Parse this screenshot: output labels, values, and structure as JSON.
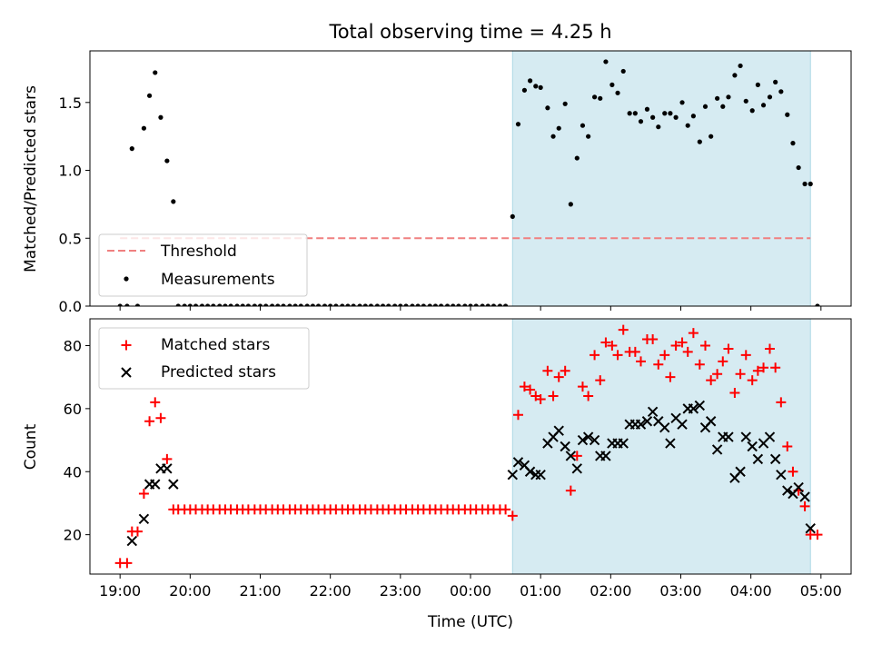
{
  "chart_data": {
    "title": "Total observing time = 4.25 h",
    "xlabel": "Time (UTC)",
    "x_tick_labels": [
      "19:00",
      "20:00",
      "21:00",
      "22:00",
      "23:00",
      "00:00",
      "01:00",
      "02:00",
      "03:00",
      "04:00",
      "05:00"
    ],
    "x_tick_hours": [
      0,
      1,
      2,
      3,
      4,
      5,
      6,
      7,
      8,
      9,
      10
    ],
    "x_units": "hours since 19:00 UTC",
    "xlim": [
      -0.43,
      10.43
    ],
    "shaded_span": {
      "x": [
        5.6,
        9.85
      ],
      "color": "#add8e6"
    },
    "top": {
      "type": "scatter",
      "ylabel": "Matched/Predicted stars",
      "ylim": [
        0,
        1.88
      ],
      "y_ticks": [
        "0.0",
        "0.5",
        "1.0",
        "1.5"
      ],
      "y_tick_values": [
        0,
        0.5,
        1.0,
        1.5
      ],
      "legend": {
        "placement": "lower-left",
        "entries": [
          "Threshold",
          "Measurements"
        ]
      },
      "threshold": {
        "name": "Threshold",
        "value": 0.5,
        "x": [
          0,
          9.85
        ],
        "color": "#f08080"
      },
      "measurements": {
        "name": "Measurements",
        "color": "#000000",
        "points": [
          [
            0.0,
            0.0
          ],
          [
            0.1,
            0.0
          ],
          [
            0.17,
            1.16
          ],
          [
            0.25,
            0.0
          ],
          [
            0.34,
            1.31
          ],
          [
            0.42,
            1.55
          ],
          [
            0.5,
            1.72
          ],
          [
            0.58,
            1.39
          ],
          [
            0.67,
            1.07
          ],
          [
            0.76,
            0.77
          ],
          [
            0.83,
            0.0
          ],
          [
            0.92,
            0.0
          ],
          [
            1.0,
            0.0
          ],
          [
            1.08,
            0.0
          ],
          [
            1.17,
            0.0
          ],
          [
            1.25,
            0.0
          ],
          [
            1.33,
            0.0
          ],
          [
            1.42,
            0.0
          ],
          [
            1.5,
            0.0
          ],
          [
            1.58,
            0.0
          ],
          [
            1.67,
            0.0
          ],
          [
            1.75,
            0.0
          ],
          [
            1.83,
            0.0
          ],
          [
            1.92,
            0.0
          ],
          [
            2.0,
            0.0
          ],
          [
            2.08,
            0.0
          ],
          [
            2.17,
            0.0
          ],
          [
            2.25,
            0.0
          ],
          [
            2.33,
            0.0
          ],
          [
            2.42,
            0.0
          ],
          [
            2.5,
            0.0
          ],
          [
            2.58,
            0.0
          ],
          [
            2.67,
            0.0
          ],
          [
            2.75,
            0.0
          ],
          [
            2.83,
            0.0
          ],
          [
            2.92,
            0.0
          ],
          [
            3.0,
            0.0
          ],
          [
            3.08,
            0.0
          ],
          [
            3.17,
            0.0
          ],
          [
            3.25,
            0.0
          ],
          [
            3.33,
            0.0
          ],
          [
            3.42,
            0.0
          ],
          [
            3.5,
            0.0
          ],
          [
            3.58,
            0.0
          ],
          [
            3.67,
            0.0
          ],
          [
            3.75,
            0.0
          ],
          [
            3.83,
            0.0
          ],
          [
            3.92,
            0.0
          ],
          [
            4.0,
            0.0
          ],
          [
            4.08,
            0.0
          ],
          [
            4.17,
            0.0
          ],
          [
            4.25,
            0.0
          ],
          [
            4.33,
            0.0
          ],
          [
            4.42,
            0.0
          ],
          [
            4.5,
            0.0
          ],
          [
            4.58,
            0.0
          ],
          [
            4.67,
            0.0
          ],
          [
            4.75,
            0.0
          ],
          [
            4.83,
            0.0
          ],
          [
            4.92,
            0.0
          ],
          [
            5.0,
            0.0
          ],
          [
            5.08,
            0.0
          ],
          [
            5.17,
            0.0
          ],
          [
            5.25,
            0.0
          ],
          [
            5.33,
            0.0
          ],
          [
            5.42,
            0.0
          ],
          [
            5.5,
            0.0
          ],
          [
            5.6,
            0.66
          ],
          [
            5.68,
            1.34
          ],
          [
            5.77,
            1.59
          ],
          [
            5.85,
            1.66
          ],
          [
            5.93,
            1.62
          ],
          [
            6.0,
            1.61
          ],
          [
            6.1,
            1.46
          ],
          [
            6.18,
            1.25
          ],
          [
            6.26,
            1.31
          ],
          [
            6.35,
            1.49
          ],
          [
            6.43,
            0.75
          ],
          [
            6.52,
            1.09
          ],
          [
            6.6,
            1.33
          ],
          [
            6.68,
            1.25
          ],
          [
            6.77,
            1.54
          ],
          [
            6.85,
            1.53
          ],
          [
            6.93,
            1.8
          ],
          [
            7.02,
            1.63
          ],
          [
            7.1,
            1.57
          ],
          [
            7.18,
            1.73
          ],
          [
            7.27,
            1.42
          ],
          [
            7.35,
            1.42
          ],
          [
            7.43,
            1.36
          ],
          [
            7.52,
            1.45
          ],
          [
            7.6,
            1.39
          ],
          [
            7.68,
            1.32
          ],
          [
            7.77,
            1.42
          ],
          [
            7.85,
            1.42
          ],
          [
            7.93,
            1.39
          ],
          [
            8.02,
            1.5
          ],
          [
            8.1,
            1.33
          ],
          [
            8.18,
            1.4
          ],
          [
            8.27,
            1.21
          ],
          [
            8.35,
            1.47
          ],
          [
            8.43,
            1.25
          ],
          [
            8.52,
            1.53
          ],
          [
            8.6,
            1.47
          ],
          [
            8.68,
            1.54
          ],
          [
            8.77,
            1.7
          ],
          [
            8.85,
            1.77
          ],
          [
            8.93,
            1.51
          ],
          [
            9.02,
            1.44
          ],
          [
            9.1,
            1.63
          ],
          [
            9.18,
            1.48
          ],
          [
            9.27,
            1.54
          ],
          [
            9.35,
            1.65
          ],
          [
            9.43,
            1.58
          ],
          [
            9.52,
            1.41
          ],
          [
            9.6,
            1.2
          ],
          [
            9.68,
            1.02
          ],
          [
            9.77,
            0.9
          ],
          [
            9.85,
            0.9
          ],
          [
            9.95,
            0.0
          ]
        ]
      }
    },
    "bottom": {
      "type": "scatter",
      "ylabel": "Count",
      "ylim": [
        7.5,
        88.5
      ],
      "y_ticks": [
        "20",
        "40",
        "60",
        "80"
      ],
      "y_tick_values": [
        20,
        40,
        60,
        80
      ],
      "legend": {
        "placement": "upper-left",
        "entries": [
          "Matched stars",
          "Predicted stars"
        ]
      },
      "matched": {
        "name": "Matched stars",
        "color": "#ff0000",
        "marker": "+",
        "points": [
          [
            0.0,
            11
          ],
          [
            0.1,
            11
          ],
          [
            0.17,
            21
          ],
          [
            0.25,
            21
          ],
          [
            0.34,
            33
          ],
          [
            0.42,
            56
          ],
          [
            0.5,
            62
          ],
          [
            0.58,
            57
          ],
          [
            0.67,
            44
          ],
          [
            0.76,
            28
          ],
          [
            0.83,
            28
          ],
          [
            0.92,
            28
          ],
          [
            1.0,
            28
          ],
          [
            1.08,
            28
          ],
          [
            1.17,
            28
          ],
          [
            1.25,
            28
          ],
          [
            1.33,
            28
          ],
          [
            1.42,
            28
          ],
          [
            1.5,
            28
          ],
          [
            1.58,
            28
          ],
          [
            1.67,
            28
          ],
          [
            1.75,
            28
          ],
          [
            1.83,
            28
          ],
          [
            1.92,
            28
          ],
          [
            2.0,
            28
          ],
          [
            2.08,
            28
          ],
          [
            2.17,
            28
          ],
          [
            2.25,
            28
          ],
          [
            2.33,
            28
          ],
          [
            2.42,
            28
          ],
          [
            2.5,
            28
          ],
          [
            2.58,
            28
          ],
          [
            2.67,
            28
          ],
          [
            2.75,
            28
          ],
          [
            2.83,
            28
          ],
          [
            2.92,
            28
          ],
          [
            3.0,
            28
          ],
          [
            3.08,
            28
          ],
          [
            3.17,
            28
          ],
          [
            3.25,
            28
          ],
          [
            3.33,
            28
          ],
          [
            3.42,
            28
          ],
          [
            3.5,
            28
          ],
          [
            3.58,
            28
          ],
          [
            3.67,
            28
          ],
          [
            3.75,
            28
          ],
          [
            3.83,
            28
          ],
          [
            3.92,
            28
          ],
          [
            4.0,
            28
          ],
          [
            4.08,
            28
          ],
          [
            4.17,
            28
          ],
          [
            4.25,
            28
          ],
          [
            4.33,
            28
          ],
          [
            4.42,
            28
          ],
          [
            4.5,
            28
          ],
          [
            4.58,
            28
          ],
          [
            4.67,
            28
          ],
          [
            4.75,
            28
          ],
          [
            4.83,
            28
          ],
          [
            4.92,
            28
          ],
          [
            5.0,
            28
          ],
          [
            5.08,
            28
          ],
          [
            5.17,
            28
          ],
          [
            5.25,
            28
          ],
          [
            5.33,
            28
          ],
          [
            5.42,
            28
          ],
          [
            5.5,
            28
          ],
          [
            5.6,
            26
          ],
          [
            5.68,
            58
          ],
          [
            5.77,
            67
          ],
          [
            5.85,
            66
          ],
          [
            5.93,
            64
          ],
          [
            6.0,
            63
          ],
          [
            6.1,
            72
          ],
          [
            6.18,
            64
          ],
          [
            6.26,
            70
          ],
          [
            6.35,
            72
          ],
          [
            6.43,
            34
          ],
          [
            6.52,
            45
          ],
          [
            6.6,
            67
          ],
          [
            6.68,
            64
          ],
          [
            6.77,
            77
          ],
          [
            6.85,
            69
          ],
          [
            6.93,
            81
          ],
          [
            7.02,
            80
          ],
          [
            7.1,
            77
          ],
          [
            7.18,
            85
          ],
          [
            7.27,
            78
          ],
          [
            7.35,
            78
          ],
          [
            7.43,
            75
          ],
          [
            7.52,
            82
          ],
          [
            7.6,
            82
          ],
          [
            7.68,
            74
          ],
          [
            7.77,
            77
          ],
          [
            7.85,
            70
          ],
          [
            7.93,
            80
          ],
          [
            8.02,
            81
          ],
          [
            8.1,
            78
          ],
          [
            8.18,
            84
          ],
          [
            8.27,
            74
          ],
          [
            8.35,
            80
          ],
          [
            8.43,
            69
          ],
          [
            8.52,
            71
          ],
          [
            8.6,
            75
          ],
          [
            8.68,
            79
          ],
          [
            8.77,
            65
          ],
          [
            8.85,
            71
          ],
          [
            8.93,
            77
          ],
          [
            9.02,
            69
          ],
          [
            9.1,
            72
          ],
          [
            9.18,
            73
          ],
          [
            9.27,
            79
          ],
          [
            9.35,
            73
          ],
          [
            9.43,
            62
          ],
          [
            9.52,
            48
          ],
          [
            9.6,
            40
          ],
          [
            9.68,
            34
          ],
          [
            9.77,
            29
          ],
          [
            9.85,
            20
          ],
          [
            9.95,
            20
          ]
        ]
      },
      "predicted": {
        "name": "Predicted stars",
        "color": "#000000",
        "marker": "x",
        "points": [
          [
            0.17,
            18
          ],
          [
            0.34,
            25
          ],
          [
            0.42,
            36
          ],
          [
            0.5,
            36
          ],
          [
            0.58,
            41
          ],
          [
            0.67,
            41
          ],
          [
            0.76,
            36
          ],
          [
            5.6,
            39
          ],
          [
            5.68,
            43
          ],
          [
            5.77,
            42
          ],
          [
            5.85,
            40
          ],
          [
            5.93,
            39
          ],
          [
            6.0,
            39
          ],
          [
            6.1,
            49
          ],
          [
            6.18,
            51
          ],
          [
            6.26,
            53
          ],
          [
            6.35,
            48
          ],
          [
            6.43,
            45
          ],
          [
            6.52,
            41
          ],
          [
            6.6,
            50
          ],
          [
            6.68,
            51
          ],
          [
            6.77,
            50
          ],
          [
            6.85,
            45
          ],
          [
            6.93,
            45
          ],
          [
            7.02,
            49
          ],
          [
            7.1,
            49
          ],
          [
            7.18,
            49
          ],
          [
            7.27,
            55
          ],
          [
            7.35,
            55
          ],
          [
            7.43,
            55
          ],
          [
            7.52,
            56
          ],
          [
            7.6,
            59
          ],
          [
            7.68,
            56
          ],
          [
            7.77,
            54
          ],
          [
            7.85,
            49
          ],
          [
            7.93,
            57
          ],
          [
            8.02,
            55
          ],
          [
            8.1,
            60
          ],
          [
            8.18,
            60
          ],
          [
            8.27,
            61
          ],
          [
            8.35,
            54
          ],
          [
            8.43,
            56
          ],
          [
            8.52,
            47
          ],
          [
            8.6,
            51
          ],
          [
            8.68,
            51
          ],
          [
            8.77,
            38
          ],
          [
            8.85,
            40
          ],
          [
            8.93,
            51
          ],
          [
            9.02,
            48
          ],
          [
            9.1,
            44
          ],
          [
            9.18,
            49
          ],
          [
            9.27,
            51
          ],
          [
            9.35,
            44
          ],
          [
            9.43,
            39
          ],
          [
            9.52,
            34
          ],
          [
            9.6,
            33
          ],
          [
            9.68,
            35
          ],
          [
            9.77,
            32
          ],
          [
            9.85,
            22
          ]
        ]
      }
    }
  }
}
